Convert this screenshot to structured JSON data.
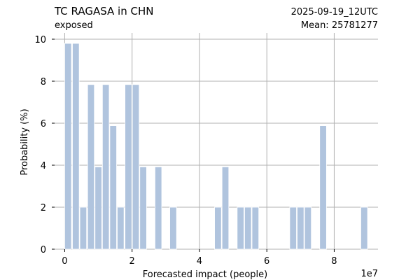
{
  "chart_data": {
    "type": "bar",
    "title": "TC RAGASA in CHN",
    "subtitle": "exposed",
    "date_label": "2025-09-19_12UTC",
    "mean_label": "Mean: 25781277",
    "xlabel": "Forecasted impact (people)",
    "ylabel": "Probability (%)",
    "x_multiplier": "1e7",
    "xlim": [
      -0.3,
      9.3
    ],
    "ylim": [
      0,
      10.3
    ],
    "xticks": [
      "0",
      "2",
      "4",
      "6",
      "8"
    ],
    "xtick_values": [
      0,
      2,
      4,
      6,
      8
    ],
    "yticks": [
      "0",
      "2",
      "4",
      "6",
      "8",
      "10"
    ],
    "ytick_values": [
      0,
      2,
      4,
      6,
      8,
      10
    ],
    "grid": true,
    "bar_width": 0.2,
    "colors": {
      "bar": "#b0c4de",
      "bar_edge": "#ffffff",
      "grid": "#b0b0b0",
      "date": "#ff0000"
    },
    "x": [
      0.1,
      0.33,
      0.55,
      0.78,
      1.0,
      1.22,
      1.44,
      1.66,
      1.89,
      2.11,
      2.33,
      2.78,
      3.22,
      4.55,
      4.77,
      5.22,
      5.44,
      5.66,
      6.78,
      7.0,
      7.22,
      7.67,
      8.89
    ],
    "values": [
      9.8,
      9.8,
      2.0,
      7.84,
      3.92,
      7.84,
      5.88,
      2.0,
      7.84,
      7.84,
      3.92,
      3.92,
      2.0,
      2.0,
      3.92,
      2.0,
      2.0,
      2.0,
      2.0,
      2.0,
      2.0,
      5.88,
      2.0
    ]
  }
}
